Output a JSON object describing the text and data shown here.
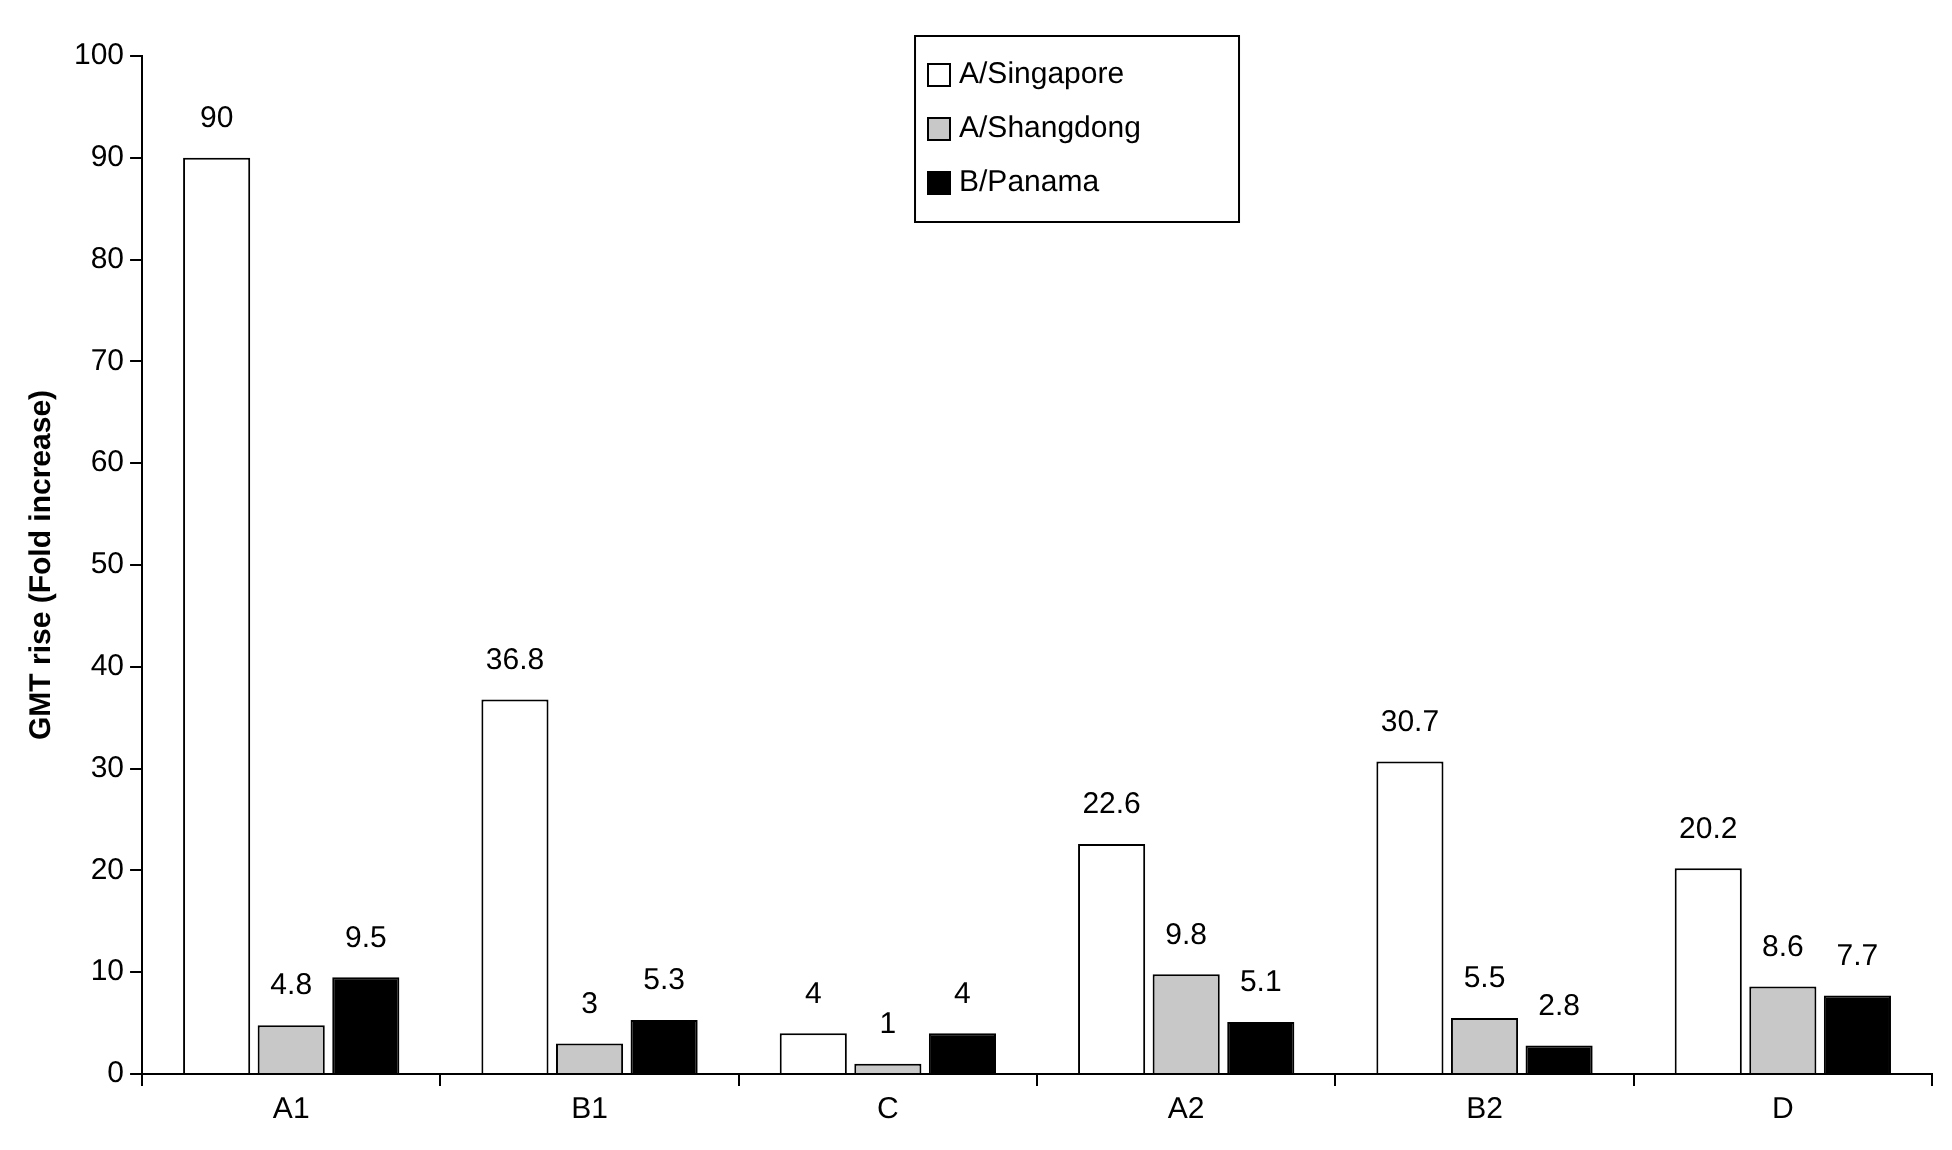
{
  "chart_data": {
    "type": "bar",
    "ylabel": "GMT rise (Fold increase)",
    "categories": [
      "A1",
      "B1",
      "C",
      "A2",
      "B2",
      "D"
    ],
    "series": [
      {
        "name": "A/Singapore",
        "color": "#ffffff",
        "values": [
          90,
          36.8,
          4,
          22.6,
          30.7,
          20.2
        ]
      },
      {
        "name": "A/Shangdong",
        "color": "#c8c8c8",
        "values": [
          4.8,
          3,
          1,
          9.8,
          5.5,
          8.6
        ]
      },
      {
        "name": "B/Panama",
        "color": "#000000",
        "values": [
          9.5,
          5.3,
          4,
          5.1,
          2.8,
          7.7
        ]
      }
    ],
    "ylim": [
      0,
      100
    ],
    "yticks": [
      0,
      10,
      20,
      30,
      40,
      50,
      60,
      70,
      80,
      90,
      100
    ],
    "grid": false,
    "legend": "top",
    "data_labels": true
  }
}
